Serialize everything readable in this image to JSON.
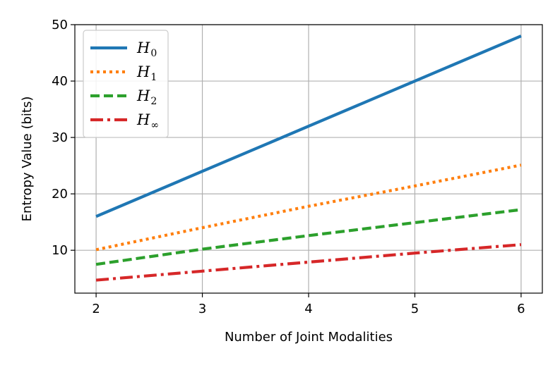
{
  "chart_data": {
    "type": "line",
    "xlabel": "Number of Joint Modalities",
    "ylabel": "Entropy Value (bits)",
    "xlim": [
      1.8,
      6.2
    ],
    "ylim": [
      2.4,
      50.0
    ],
    "xticks": [
      "2",
      "3",
      "4",
      "5",
      "6"
    ],
    "yticks": [
      "10",
      "20",
      "30",
      "40",
      "50"
    ],
    "grid": true,
    "legend_position": "upper-left",
    "x": [
      2,
      3,
      4,
      5,
      6
    ],
    "series": [
      {
        "name": "H",
        "sub": "0",
        "values": [
          16.0,
          24.0,
          32.0,
          40.0,
          48.0
        ],
        "color": "#1f77b4",
        "style": "solid"
      },
      {
        "name": "H",
        "sub": "1",
        "values": [
          10.1,
          14.0,
          17.8,
          21.4,
          25.1
        ],
        "color": "#ff7f0e",
        "style": "dotted"
      },
      {
        "name": "H",
        "sub": "2",
        "values": [
          7.5,
          10.2,
          12.6,
          14.9,
          17.2
        ],
        "color": "#2ca02c",
        "style": "dashed"
      },
      {
        "name": "H",
        "sub": "∞",
        "values": [
          4.7,
          6.3,
          7.9,
          9.5,
          11.0
        ],
        "color": "#d62728",
        "style": "dashdot"
      }
    ]
  }
}
